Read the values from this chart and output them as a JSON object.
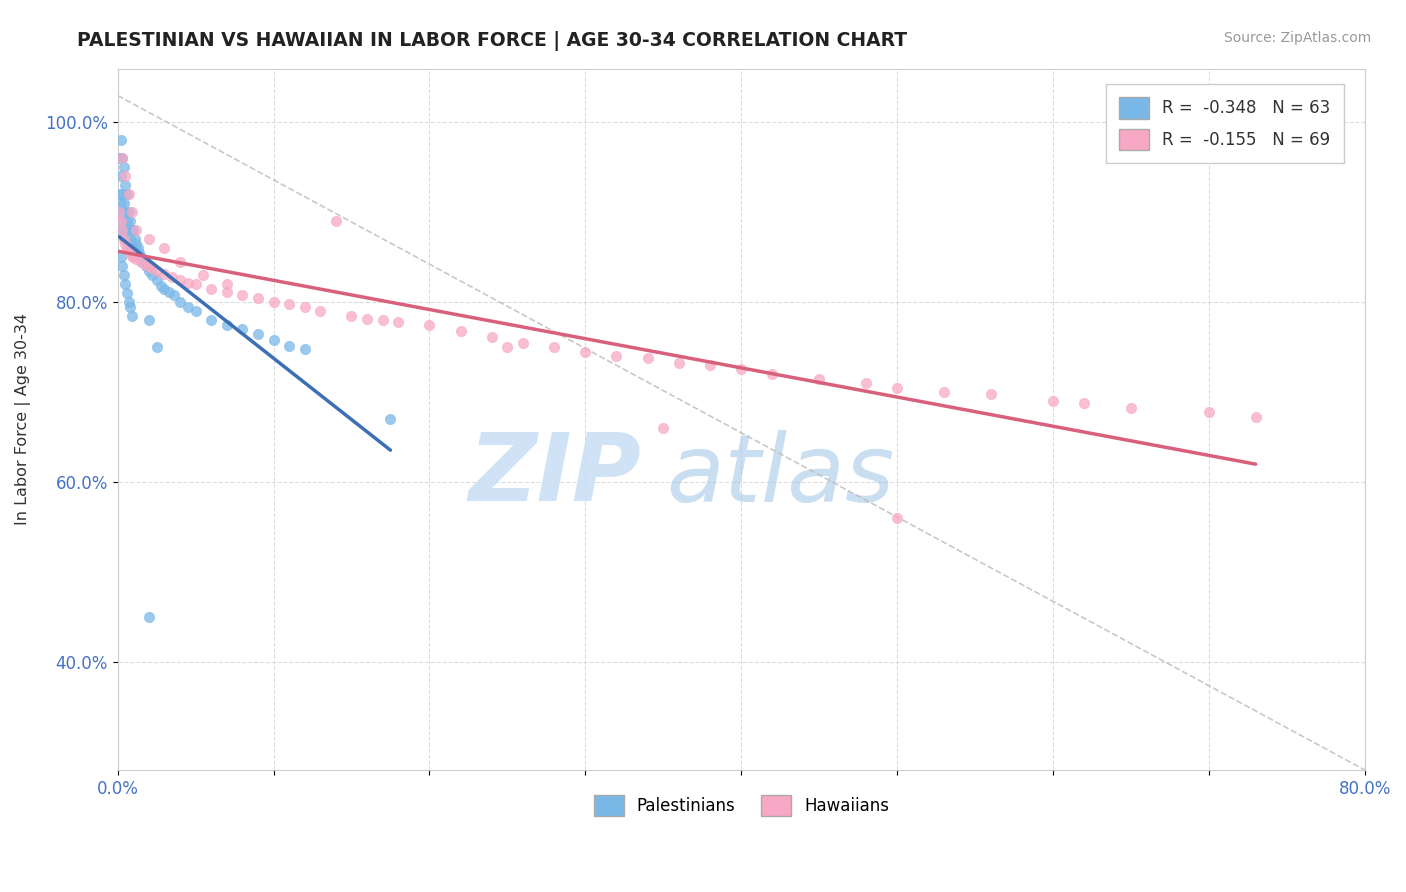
{
  "title": "PALESTINIAN VS HAWAIIAN IN LABOR FORCE | AGE 30-34 CORRELATION CHART",
  "source_text": "Source: ZipAtlas.com",
  "ylabel": "In Labor Force | Age 30-34",
  "xlim": [
    0.0,
    0.8
  ],
  "ylim": [
    0.28,
    1.06
  ],
  "xtick_positions": [
    0.0,
    0.1,
    0.2,
    0.3,
    0.4,
    0.5,
    0.6,
    0.7,
    0.8
  ],
  "xticklabels": [
    "0.0%",
    "",
    "",
    "",
    "",
    "",
    "",
    "",
    "80.0%"
  ],
  "ytick_positions": [
    0.4,
    0.6,
    0.8,
    1.0
  ],
  "yticklabels": [
    "40.0%",
    "60.0%",
    "80.0%",
    "100.0%"
  ],
  "blue_R": -0.348,
  "blue_N": 63,
  "pink_R": -0.155,
  "pink_N": 69,
  "blue_color": "#7ab8e8",
  "pink_color": "#f7a8c4",
  "blue_trend_color": "#3d6fb5",
  "pink_trend_color": "#d9607a",
  "watermark_zip": "ZIP",
  "watermark_atlas": "atlas",
  "legend_blue_label": "Palestinians",
  "legend_pink_label": "Hawaiians",
  "background_color": "#ffffff",
  "grid_color": "#d9d9d9",
  "blue_x": [
    0.001,
    0.001,
    0.001,
    0.001,
    0.002,
    0.002,
    0.002,
    0.002,
    0.003,
    0.003,
    0.003,
    0.004,
    0.004,
    0.004,
    0.005,
    0.005,
    0.005,
    0.006,
    0.006,
    0.007,
    0.007,
    0.008,
    0.008,
    0.009,
    0.009,
    0.01,
    0.01,
    0.011,
    0.012,
    0.013,
    0.014,
    0.015,
    0.016,
    0.018,
    0.02,
    0.022,
    0.025,
    0.028,
    0.03,
    0.033,
    0.036,
    0.04,
    0.045,
    0.05,
    0.06,
    0.07,
    0.08,
    0.09,
    0.1,
    0.11,
    0.12,
    0.002,
    0.003,
    0.004,
    0.005,
    0.006,
    0.007,
    0.008,
    0.009,
    0.02,
    0.025,
    0.175,
    0.02
  ],
  "blue_y": [
    0.96,
    0.92,
    0.9,
    0.88,
    0.98,
    0.94,
    0.91,
    0.89,
    0.96,
    0.92,
    0.9,
    0.95,
    0.91,
    0.88,
    0.93,
    0.9,
    0.87,
    0.92,
    0.89,
    0.9,
    0.88,
    0.89,
    0.87,
    0.88,
    0.86,
    0.88,
    0.86,
    0.87,
    0.865,
    0.86,
    0.855,
    0.85,
    0.845,
    0.84,
    0.835,
    0.83,
    0.825,
    0.818,
    0.815,
    0.812,
    0.808,
    0.8,
    0.795,
    0.79,
    0.78,
    0.775,
    0.77,
    0.765,
    0.758,
    0.752,
    0.748,
    0.85,
    0.84,
    0.83,
    0.82,
    0.81,
    0.8,
    0.795,
    0.785,
    0.78,
    0.75,
    0.67,
    0.45
  ],
  "pink_x": [
    0.001,
    0.002,
    0.003,
    0.004,
    0.005,
    0.006,
    0.007,
    0.008,
    0.009,
    0.01,
    0.012,
    0.015,
    0.018,
    0.02,
    0.022,
    0.025,
    0.03,
    0.035,
    0.04,
    0.045,
    0.05,
    0.06,
    0.07,
    0.08,
    0.09,
    0.1,
    0.11,
    0.12,
    0.13,
    0.15,
    0.16,
    0.17,
    0.18,
    0.2,
    0.22,
    0.24,
    0.26,
    0.28,
    0.3,
    0.32,
    0.34,
    0.36,
    0.38,
    0.4,
    0.42,
    0.45,
    0.48,
    0.5,
    0.53,
    0.56,
    0.6,
    0.62,
    0.65,
    0.7,
    0.73,
    0.003,
    0.005,
    0.007,
    0.009,
    0.012,
    0.02,
    0.03,
    0.04,
    0.055,
    0.07,
    0.35,
    0.5,
    0.25,
    0.14
  ],
  "pink_y": [
    0.9,
    0.89,
    0.88,
    0.87,
    0.865,
    0.86,
    0.858,
    0.855,
    0.852,
    0.85,
    0.848,
    0.845,
    0.842,
    0.84,
    0.838,
    0.835,
    0.832,
    0.828,
    0.825,
    0.822,
    0.82,
    0.815,
    0.812,
    0.808,
    0.805,
    0.8,
    0.798,
    0.795,
    0.79,
    0.785,
    0.782,
    0.78,
    0.778,
    0.775,
    0.768,
    0.762,
    0.755,
    0.75,
    0.745,
    0.74,
    0.738,
    0.733,
    0.73,
    0.726,
    0.72,
    0.715,
    0.71,
    0.705,
    0.7,
    0.698,
    0.69,
    0.688,
    0.683,
    0.678,
    0.672,
    0.96,
    0.94,
    0.92,
    0.9,
    0.88,
    0.87,
    0.86,
    0.845,
    0.83,
    0.82,
    0.66,
    0.56,
    0.75,
    0.89
  ]
}
